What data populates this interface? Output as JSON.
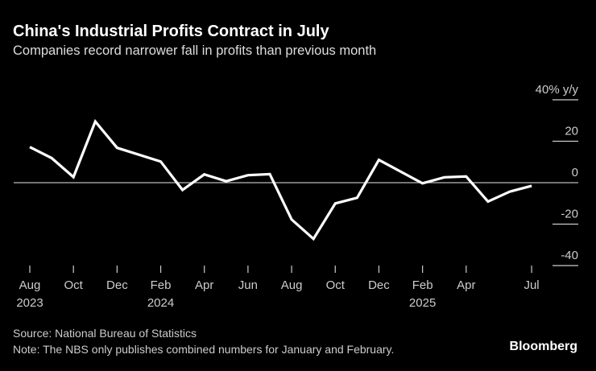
{
  "title": "China's Industrial Profits Contract in July",
  "subtitle": "Companies record narrower fall in profits than previous month",
  "source": "Source: National Bureau of Statistics",
  "note": "Note: The NBS only publishes combined numbers for January and February.",
  "logo": "Bloomberg",
  "colors": {
    "background": "#000000",
    "line": "#ffffff",
    "text": "#cccccc",
    "zero_line": "#bbbbbb"
  },
  "chart_data": {
    "type": "line",
    "title": "China's Industrial Profits Contract in July",
    "subtitle": "Companies record narrower fall in profits than previous month",
    "ylabel": "% y/y",
    "ylim": [
      -40,
      40
    ],
    "yticks": [
      {
        "value": 40,
        "label": "40% y/y"
      },
      {
        "value": 20,
        "label": "20"
      },
      {
        "value": 0,
        "label": "0"
      },
      {
        "value": -20,
        "label": "-20"
      },
      {
        "value": -40,
        "label": "-40"
      }
    ],
    "xticks": [
      {
        "month": "2023-08",
        "label": "Aug",
        "year": "2023"
      },
      {
        "month": "2023-10",
        "label": "Oct"
      },
      {
        "month": "2023-12",
        "label": "Dec"
      },
      {
        "month": "2024-02",
        "label": "Feb",
        "year": "2024"
      },
      {
        "month": "2024-04",
        "label": "Apr"
      },
      {
        "month": "2024-06",
        "label": "Jun"
      },
      {
        "month": "2024-08",
        "label": "Aug"
      },
      {
        "month": "2024-10",
        "label": "Oct"
      },
      {
        "month": "2024-12",
        "label": "Dec"
      },
      {
        "month": "2025-02",
        "label": "Feb",
        "year": "2025"
      },
      {
        "month": "2025-04",
        "label": "Apr"
      },
      {
        "month": "2025-07",
        "label": "Jul"
      }
    ],
    "grid": false,
    "series": [
      {
        "points": [
          {
            "x": "2023-08",
            "y": 17.2
          },
          {
            "x": "2023-09",
            "y": 11.9
          },
          {
            "x": "2023-10",
            "y": 2.7
          },
          {
            "x": "2023-11",
            "y": 29.5
          },
          {
            "x": "2023-12",
            "y": 16.8
          },
          {
            "x": "2024-02",
            "y": 10.2
          },
          {
            "x": "2024-03",
            "y": -3.5
          },
          {
            "x": "2024-04",
            "y": 4.0
          },
          {
            "x": "2024-05",
            "y": 0.7
          },
          {
            "x": "2024-06",
            "y": 3.6
          },
          {
            "x": "2024-07",
            "y": 4.1
          },
          {
            "x": "2024-08",
            "y": -17.8
          },
          {
            "x": "2024-09",
            "y": -27.1
          },
          {
            "x": "2024-10",
            "y": -10.0
          },
          {
            "x": "2024-11",
            "y": -7.3
          },
          {
            "x": "2024-12",
            "y": 11.0
          },
          {
            "x": "2025-02",
            "y": -0.3
          },
          {
            "x": "2025-03",
            "y": 2.6
          },
          {
            "x": "2025-04",
            "y": 3.0
          },
          {
            "x": "2025-05",
            "y": -9.1
          },
          {
            "x": "2025-06",
            "y": -4.3
          },
          {
            "x": "2025-07",
            "y": -1.5
          }
        ]
      }
    ]
  }
}
